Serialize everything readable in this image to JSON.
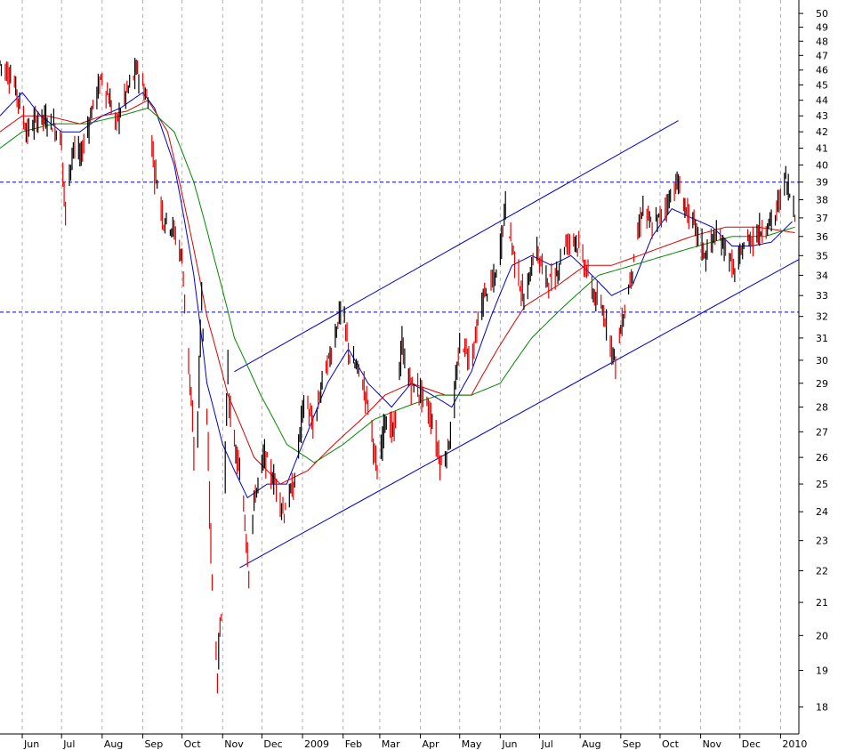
{
  "chart_data": {
    "type": "candlestick",
    "x_range": [
      "2008-05-15",
      "2010-01-15"
    ],
    "y_range": [
      17.3,
      51
    ],
    "y_scale": "log",
    "y_ticks": [
      18,
      19,
      20,
      21,
      22,
      23,
      24,
      25,
      26,
      27,
      28,
      29,
      30,
      31,
      32,
      33,
      34,
      35,
      36,
      37,
      38,
      39,
      40,
      41,
      42,
      43,
      44,
      45,
      46,
      47,
      48,
      49,
      50
    ],
    "x_ticks": [
      {
        "date": "2008-06-01",
        "label": "Jun"
      },
      {
        "date": "2008-07-01",
        "label": "Jul"
      },
      {
        "date": "2008-08-01",
        "label": "Aug"
      },
      {
        "date": "2008-09-01",
        "label": "Sep"
      },
      {
        "date": "2008-10-01",
        "label": "Oct"
      },
      {
        "date": "2008-11-01",
        "label": "Nov"
      },
      {
        "date": "2008-12-01",
        "label": "Dec"
      },
      {
        "date": "2009-01-01",
        "label": "2009"
      },
      {
        "date": "2009-02-01",
        "label": "Feb"
      },
      {
        "date": "2009-03-01",
        "label": "Mar"
      },
      {
        "date": "2009-04-01",
        "label": "Apr"
      },
      {
        "date": "2009-05-01",
        "label": "May"
      },
      {
        "date": "2009-06-01",
        "label": "Jun"
      },
      {
        "date": "2009-07-01",
        "label": "Jul"
      },
      {
        "date": "2009-08-01",
        "label": "Aug"
      },
      {
        "date": "2009-09-01",
        "label": "Sep"
      },
      {
        "date": "2009-10-01",
        "label": "Oct"
      },
      {
        "date": "2009-11-01",
        "label": "Nov"
      },
      {
        "date": "2009-12-01",
        "label": "Dec"
      },
      {
        "date": "2010-01-01",
        "label": "2010"
      }
    ],
    "price_path": [
      [
        "2008-05-15",
        46.5
      ],
      [
        "2008-05-25",
        45.5
      ],
      [
        "2008-06-05",
        42
      ],
      [
        "2008-06-15",
        43
      ],
      [
        "2008-06-25",
        42.5
      ],
      [
        "2008-07-01",
        41.5
      ],
      [
        "2008-07-04",
        37.5
      ],
      [
        "2008-07-10",
        41
      ],
      [
        "2008-07-16",
        40.5
      ],
      [
        "2008-07-25",
        43.5
      ],
      [
        "2008-08-01",
        45.5
      ],
      [
        "2008-08-07",
        44
      ],
      [
        "2008-08-12",
        42.5
      ],
      [
        "2008-08-20",
        44.5
      ],
      [
        "2008-08-28",
        46
      ],
      [
        "2008-09-05",
        44
      ],
      [
        "2008-09-10",
        40
      ],
      [
        "2008-09-17",
        37
      ],
      [
        "2008-09-24",
        36.5
      ],
      [
        "2008-10-01",
        35
      ],
      [
        "2008-10-08",
        28.5
      ],
      [
        "2008-10-12",
        24.5
      ],
      [
        "2008-10-16",
        32.5
      ],
      [
        "2008-10-20",
        28
      ],
      [
        "2008-10-24",
        22
      ],
      [
        "2008-10-28",
        19
      ],
      [
        "2008-11-01",
        21
      ],
      [
        "2008-11-05",
        29
      ],
      [
        "2008-11-10",
        26.5
      ],
      [
        "2008-11-16",
        25
      ],
      [
        "2008-11-21",
        22.2
      ],
      [
        "2008-11-26",
        24.5
      ],
      [
        "2008-12-03",
        26
      ],
      [
        "2008-12-12",
        25
      ],
      [
        "2008-12-18",
        24
      ],
      [
        "2008-12-26",
        25
      ],
      [
        "2009-01-03",
        28.5
      ],
      [
        "2009-01-10",
        27
      ],
      [
        "2009-01-16",
        29
      ],
      [
        "2009-01-24",
        30.5
      ],
      [
        "2009-01-31",
        32.5
      ],
      [
        "2009-02-07",
        30
      ],
      [
        "2009-02-14",
        29.5
      ],
      [
        "2009-02-21",
        28
      ],
      [
        "2009-02-28",
        25
      ],
      [
        "2009-03-05",
        27.5
      ],
      [
        "2009-03-12",
        27
      ],
      [
        "2009-03-18",
        30.5
      ],
      [
        "2009-03-25",
        29
      ],
      [
        "2009-04-03",
        28.5
      ],
      [
        "2009-04-10",
        27.5
      ],
      [
        "2009-04-18",
        25.5
      ],
      [
        "2009-04-25",
        27
      ],
      [
        "2009-05-02",
        31
      ],
      [
        "2009-05-10",
        30
      ],
      [
        "2009-05-20",
        33
      ],
      [
        "2009-05-30",
        34
      ],
      [
        "2009-06-05",
        37.5
      ],
      [
        "2009-06-12",
        35
      ],
      [
        "2009-06-20",
        32.5
      ],
      [
        "2009-06-28",
        35.5
      ],
      [
        "2009-07-05",
        34
      ],
      [
        "2009-07-12",
        33.5
      ],
      [
        "2009-07-20",
        35.5
      ],
      [
        "2009-07-28",
        36
      ],
      [
        "2009-08-05",
        34.5
      ],
      [
        "2009-08-12",
        33
      ],
      [
        "2009-08-20",
        32
      ],
      [
        "2009-08-28",
        30
      ],
      [
        "2009-09-05",
        32.5
      ],
      [
        "2009-09-12",
        35
      ],
      [
        "2009-09-18",
        37.5
      ],
      [
        "2009-09-25",
        36.5
      ],
      [
        "2009-10-01",
        37
      ],
      [
        "2009-10-08",
        38
      ],
      [
        "2009-10-14",
        39
      ],
      [
        "2009-10-21",
        37.5
      ],
      [
        "2009-10-28",
        36.5
      ],
      [
        "2009-11-05",
        35
      ],
      [
        "2009-11-12",
        36
      ],
      [
        "2009-11-20",
        35.5
      ],
      [
        "2009-11-28",
        34
      ],
      [
        "2009-12-04",
        35.5
      ],
      [
        "2009-12-12",
        36
      ],
      [
        "2009-12-20",
        36.5
      ],
      [
        "2009-12-28",
        37
      ],
      [
        "2010-01-05",
        39.2
      ],
      [
        "2010-01-12",
        37.5
      ]
    ],
    "series": [
      {
        "name": "",
        "color": "#0000cc",
        "points": [
          [
            "2008-05-15",
            43
          ],
          [
            "2008-06-01",
            44.5
          ],
          [
            "2008-06-15",
            43
          ],
          [
            "2008-07-01",
            42
          ],
          [
            "2008-07-15",
            42
          ],
          [
            "2008-08-01",
            43
          ],
          [
            "2008-08-15",
            43.5
          ],
          [
            "2008-09-01",
            44.5
          ],
          [
            "2008-09-10",
            43.5
          ],
          [
            "2008-09-25",
            40
          ],
          [
            "2008-10-10",
            34
          ],
          [
            "2008-10-20",
            29
          ],
          [
            "2008-11-01",
            26.5
          ],
          [
            "2008-11-10",
            25.5
          ],
          [
            "2008-11-20",
            24.5
          ],
          [
            "2008-12-05",
            25
          ],
          [
            "2008-12-20",
            25
          ],
          [
            "2009-01-05",
            27
          ],
          [
            "2009-01-20",
            29
          ],
          [
            "2009-02-05",
            30.5
          ],
          [
            "2009-02-20",
            29
          ],
          [
            "2009-03-10",
            28
          ],
          [
            "2009-03-25",
            29
          ],
          [
            "2009-04-10",
            28.5
          ],
          [
            "2009-04-25",
            28
          ],
          [
            "2009-05-10",
            29.5
          ],
          [
            "2009-05-25",
            32
          ],
          [
            "2009-06-10",
            34.5
          ],
          [
            "2009-06-25",
            35
          ],
          [
            "2009-07-10",
            34.5
          ],
          [
            "2009-07-25",
            35
          ],
          [
            "2009-08-10",
            34
          ],
          [
            "2009-08-25",
            33
          ],
          [
            "2009-09-10",
            33.5
          ],
          [
            "2009-09-25",
            36
          ],
          [
            "2009-10-10",
            37.5
          ],
          [
            "2009-10-25",
            37
          ],
          [
            "2009-11-10",
            36.5
          ],
          [
            "2009-11-25",
            35.5
          ],
          [
            "2009-12-10",
            35.5
          ],
          [
            "2009-12-25",
            35.7
          ],
          [
            "2010-01-10",
            36.8
          ]
        ]
      },
      {
        "name": "",
        "color": "#dd0000",
        "points": [
          [
            "2008-05-15",
            42
          ],
          [
            "2008-06-01",
            43
          ],
          [
            "2008-06-20",
            43
          ],
          [
            "2008-07-15",
            42.5
          ],
          [
            "2008-08-01",
            43
          ],
          [
            "2008-08-20",
            43.3
          ],
          [
            "2008-09-05",
            44
          ],
          [
            "2008-09-20",
            42
          ],
          [
            "2008-10-05",
            37
          ],
          [
            "2008-10-20",
            32
          ],
          [
            "2008-11-05",
            28.5
          ],
          [
            "2008-11-25",
            26
          ],
          [
            "2008-12-15",
            25
          ],
          [
            "2009-01-05",
            25.5
          ],
          [
            "2009-01-25",
            26.5
          ],
          [
            "2009-02-15",
            27.5
          ],
          [
            "2009-03-05",
            28.5
          ],
          [
            "2009-03-25",
            29
          ],
          [
            "2009-04-20",
            28.5
          ],
          [
            "2009-05-10",
            28.5
          ],
          [
            "2009-05-30",
            30.5
          ],
          [
            "2009-06-20",
            32.5
          ],
          [
            "2009-07-15",
            33.5
          ],
          [
            "2009-08-05",
            34.5
          ],
          [
            "2009-08-25",
            34.5
          ],
          [
            "2009-09-15",
            35
          ],
          [
            "2009-10-05",
            35.5
          ],
          [
            "2009-10-25",
            36
          ],
          [
            "2009-11-20",
            36.5
          ],
          [
            "2009-12-15",
            36.5
          ],
          [
            "2010-01-12",
            36.2
          ]
        ]
      },
      {
        "name": "",
        "color": "#008800",
        "points": [
          [
            "2008-05-15",
            41
          ],
          [
            "2008-06-01",
            42
          ],
          [
            "2008-06-25",
            42.5
          ],
          [
            "2008-07-20",
            42.5
          ],
          [
            "2008-08-15",
            43
          ],
          [
            "2008-09-05",
            43.5
          ],
          [
            "2008-09-25",
            42
          ],
          [
            "2008-10-10",
            39
          ],
          [
            "2008-10-25",
            35
          ],
          [
            "2008-11-10",
            31
          ],
          [
            "2008-11-30",
            28.5
          ],
          [
            "2008-12-20",
            26.5
          ],
          [
            "2009-01-10",
            25.8
          ],
          [
            "2009-02-01",
            26.5
          ],
          [
            "2009-02-25",
            27.5
          ],
          [
            "2009-03-20",
            28
          ],
          [
            "2009-04-15",
            28.5
          ],
          [
            "2009-05-10",
            28.5
          ],
          [
            "2009-06-01",
            29
          ],
          [
            "2009-06-25",
            31
          ],
          [
            "2009-07-20",
            32.5
          ],
          [
            "2009-08-15",
            34
          ],
          [
            "2009-09-10",
            34.5
          ],
          [
            "2009-10-05",
            35
          ],
          [
            "2009-10-30",
            35.5
          ],
          [
            "2009-11-25",
            36
          ],
          [
            "2009-12-20",
            36
          ],
          [
            "2010-01-12",
            36.5
          ]
        ]
      }
    ],
    "annotations": {
      "horizontal_lines": [
        {
          "value": 39,
          "color": "#0000cc",
          "style": "dashed"
        },
        {
          "value": 32.2,
          "color": "#0000cc",
          "style": "dashed"
        }
      ],
      "trend_lines": [
        {
          "color": "#0000cc",
          "from": [
            "2008-11-10",
            29.5
          ],
          "to": [
            "2009-10-15",
            42.7
          ]
        },
        {
          "color": "#0000cc",
          "from": [
            "2008-11-14",
            22.1
          ],
          "to": [
            "2010-01-15",
            34.8
          ]
        }
      ]
    },
    "grid": {
      "vertical": "dashed",
      "horizontal": false
    },
    "colors": {
      "up": "#000000",
      "down": "#ee0000"
    }
  }
}
